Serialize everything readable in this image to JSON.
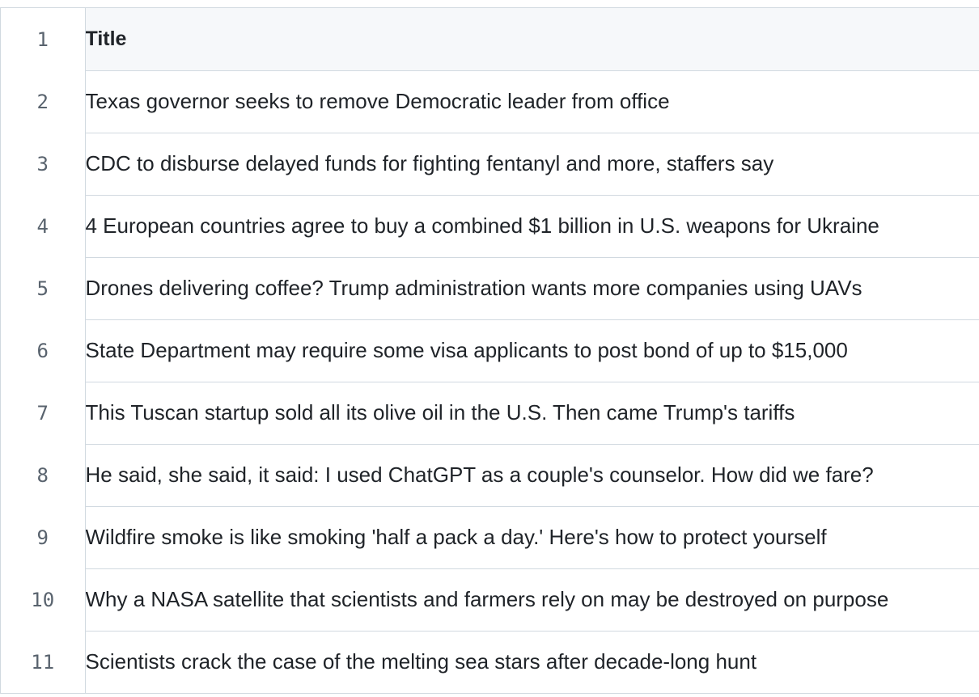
{
  "table": {
    "rows": [
      {
        "num": "1",
        "text": "Title"
      },
      {
        "num": "2",
        "text": "Texas governor seeks to remove Democratic leader from office"
      },
      {
        "num": "3",
        "text": "CDC to disburse delayed funds for fighting fentanyl and more, staffers say"
      },
      {
        "num": "4",
        "text": "4 European countries agree to buy a combined $1 billion in U.S. weapons for Ukraine"
      },
      {
        "num": "5",
        "text": "Drones delivering coffee? Trump administration wants more companies using UAVs"
      },
      {
        "num": "6",
        "text": "State Department may require some visa applicants to post bond of up to $15,000"
      },
      {
        "num": "7",
        "text": "This Tuscan startup sold all its olive oil in the U.S. Then came Trump's tariffs"
      },
      {
        "num": "8",
        "text": "He said, she said, it said: I used ChatGPT as a couple's counselor. How did we fare?"
      },
      {
        "num": "9",
        "text": "Wildfire smoke is like smoking 'half a pack a day.' Here's how to protect yourself"
      },
      {
        "num": "10",
        "text": "Why a NASA satellite that scientists and farmers rely on may be destroyed on purpose"
      },
      {
        "num": "11",
        "text": "Scientists crack the case of the melting sea stars after decade-long hunt"
      }
    ]
  }
}
